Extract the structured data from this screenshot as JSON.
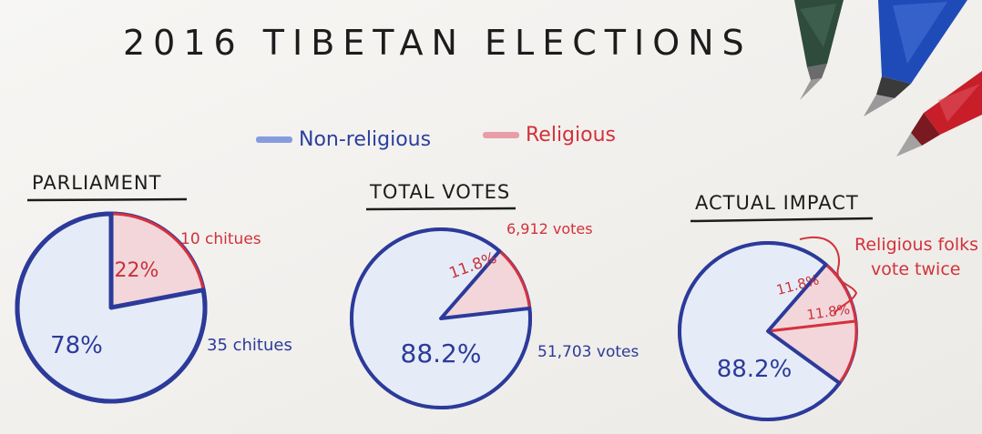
{
  "title": "2016 TIBETAN ELECTIONS",
  "legend": {
    "items": [
      {
        "label": "Non-religious",
        "color": "#2b3f9e",
        "swatch": "#6a86d8"
      },
      {
        "label": "Religious",
        "color": "#d2323a",
        "swatch": "#e58a94"
      }
    ]
  },
  "colors": {
    "non_religious_fill": "#e6ecf7",
    "non_religious_stroke": "#2c3a9a",
    "religious_fill": "#f2d6da",
    "religious_stroke": "#d6323e",
    "ink": "#1c1c1c",
    "paper": "#f4f3f1"
  },
  "chart_data": [
    {
      "type": "pie",
      "title": "PARLIAMENT",
      "slices": [
        {
          "series": "Non-religious",
          "value": 78,
          "label": "78%",
          "callout": "35 chitues"
        },
        {
          "series": "Religious",
          "value": 22,
          "label": "22%",
          "callout": "10 chitues"
        }
      ]
    },
    {
      "type": "pie",
      "title": "TOTAL VOTES",
      "slices": [
        {
          "series": "Non-religious",
          "value": 88.2,
          "label": "88.2%",
          "callout": "51,703 votes"
        },
        {
          "series": "Religious",
          "value": 11.8,
          "label": "11.8%",
          "callout": "6,912 votes"
        }
      ]
    },
    {
      "type": "pie",
      "title": "ACTUAL IMPACT",
      "slices": [
        {
          "series": "Non-religious",
          "value": 76.4,
          "label": "88.2%"
        },
        {
          "series": "Religious",
          "value": 11.8,
          "label": "11.8%"
        },
        {
          "series": "Religious",
          "value": 11.8,
          "label": "11.8%"
        }
      ],
      "annotation": [
        "Religious folks",
        "vote twice"
      ]
    }
  ],
  "pens": [
    {
      "name": "green-pen",
      "color": "#2f4b3c"
    },
    {
      "name": "blue-pen",
      "color": "#1f4bb8"
    },
    {
      "name": "red-pen",
      "color": "#c81e2a"
    }
  ]
}
